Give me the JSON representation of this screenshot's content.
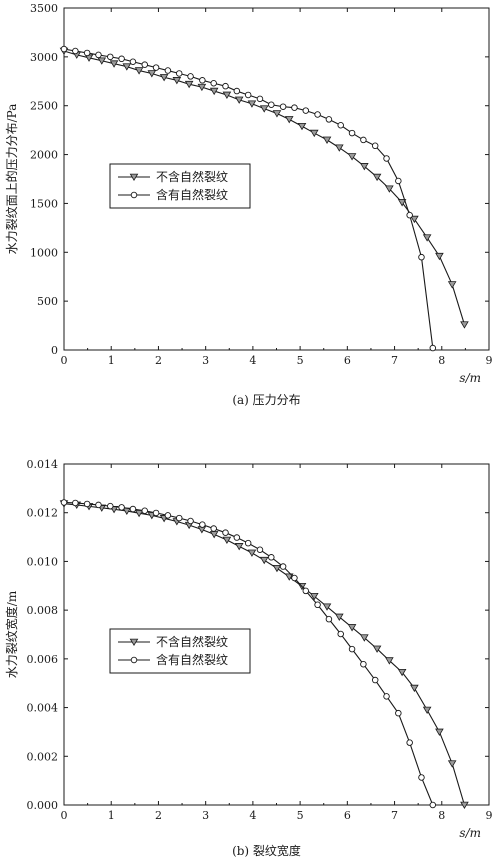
{
  "chart_data": [
    {
      "type": "line",
      "caption": "(a) 压力分布",
      "xlabel": "s/m",
      "ylabel": "水力裂纹面上的压力分布/Pa",
      "xlim": [
        0,
        9
      ],
      "ylim": [
        0,
        3500
      ],
      "xticks": [
        0,
        1,
        2,
        3,
        4,
        5,
        6,
        7,
        8,
        9
      ],
      "yticks": [
        0,
        500,
        1000,
        1500,
        2000,
        2500,
        3000,
        3500
      ],
      "grid": false,
      "legend_position": "middle-left",
      "series": [
        {
          "name": "不含自然裂纹",
          "marker": "triangle-down",
          "x": [
            0.0,
            0.27,
            0.53,
            0.8,
            1.06,
            1.33,
            1.59,
            1.86,
            2.12,
            2.39,
            2.65,
            2.92,
            3.18,
            3.45,
            3.71,
            3.98,
            4.24,
            4.51,
            4.77,
            5.04,
            5.3,
            5.57,
            5.83,
            6.1,
            6.36,
            6.63,
            6.89,
            7.16,
            7.42,
            7.69,
            7.95,
            8.22,
            8.48
          ],
          "y": [
            3060,
            3020,
            2990,
            2960,
            2930,
            2900,
            2860,
            2830,
            2790,
            2760,
            2720,
            2690,
            2650,
            2610,
            2560,
            2520,
            2470,
            2420,
            2360,
            2290,
            2220,
            2150,
            2070,
            1980,
            1880,
            1770,
            1650,
            1510,
            1340,
            1150,
            960,
            670,
            260
          ]
        },
        {
          "name": "含有自然裂纹",
          "marker": "circle",
          "x": [
            0.0,
            0.24,
            0.49,
            0.73,
            0.98,
            1.22,
            1.46,
            1.71,
            1.95,
            2.2,
            2.44,
            2.68,
            2.93,
            3.17,
            3.42,
            3.66,
            3.9,
            4.15,
            4.39,
            4.64,
            4.88,
            5.12,
            5.37,
            5.61,
            5.86,
            6.1,
            6.34,
            6.59,
            6.83,
            7.08,
            7.32,
            7.57,
            7.81
          ],
          "y": [
            3080,
            3060,
            3040,
            3020,
            3000,
            2980,
            2950,
            2920,
            2890,
            2860,
            2830,
            2800,
            2760,
            2730,
            2700,
            2650,
            2610,
            2570,
            2510,
            2490,
            2480,
            2450,
            2410,
            2360,
            2300,
            2220,
            2150,
            2090,
            1960,
            1730,
            1380,
            950,
            20
          ]
        }
      ]
    },
    {
      "type": "line",
      "caption": "(b) 裂纹宽度",
      "xlabel": "s/m",
      "ylabel": "水力裂纹宽度/m",
      "xlim": [
        0,
        9
      ],
      "ylim": [
        0,
        0.014
      ],
      "xticks": [
        0,
        1,
        2,
        3,
        4,
        5,
        6,
        7,
        8,
        9
      ],
      "yticks": [
        "0.000",
        "0.002",
        "0.004",
        "0.006",
        "0.008",
        "0.010",
        "0.012",
        "0.014"
      ],
      "grid": false,
      "legend_position": "lower-left",
      "series": [
        {
          "name": "不含自然裂纹",
          "marker": "triangle-down",
          "x": [
            0.0,
            0.27,
            0.53,
            0.8,
            1.06,
            1.33,
            1.59,
            1.86,
            2.12,
            2.39,
            2.65,
            2.92,
            3.18,
            3.45,
            3.71,
            3.98,
            4.24,
            4.51,
            4.77,
            5.04,
            5.3,
            5.57,
            5.83,
            6.1,
            6.36,
            6.63,
            6.89,
            7.16,
            7.42,
            7.69,
            7.95,
            8.22,
            8.48
          ],
          "y": [
            0.01237,
            0.01232,
            0.01226,
            0.0122,
            0.01214,
            0.01207,
            0.01198,
            0.01189,
            0.01177,
            0.01164,
            0.01149,
            0.01131,
            0.01111,
            0.01088,
            0.01062,
            0.01035,
            0.01005,
            0.00972,
            0.00937,
            0.00898,
            0.00857,
            0.00814,
            0.00772,
            0.00729,
            0.00687,
            0.00641,
            0.00593,
            0.00545,
            0.0048,
            0.0039,
            0.003,
            0.0017,
            0.0
          ]
        },
        {
          "name": "含有自然裂纹",
          "marker": "circle",
          "x": [
            0.0,
            0.24,
            0.49,
            0.73,
            0.98,
            1.22,
            1.46,
            1.71,
            1.95,
            2.2,
            2.44,
            2.68,
            2.93,
            3.17,
            3.42,
            3.66,
            3.9,
            4.15,
            4.39,
            4.64,
            4.88,
            5.12,
            5.37,
            5.61,
            5.86,
            6.1,
            6.34,
            6.59,
            6.83,
            7.08,
            7.32,
            7.57,
            7.81
          ],
          "y": [
            0.01242,
            0.0124,
            0.01236,
            0.01232,
            0.01227,
            0.01222,
            0.01215,
            0.01208,
            0.01199,
            0.01189,
            0.01178,
            0.01166,
            0.01151,
            0.01135,
            0.01118,
            0.01098,
            0.01075,
            0.01048,
            0.01017,
            0.00979,
            0.00932,
            0.00879,
            0.00822,
            0.00763,
            0.00702,
            0.0064,
            0.00578,
            0.00513,
            0.00446,
            0.00377,
            0.00256,
            0.00113,
            0.0
          ]
        }
      ]
    }
  ]
}
